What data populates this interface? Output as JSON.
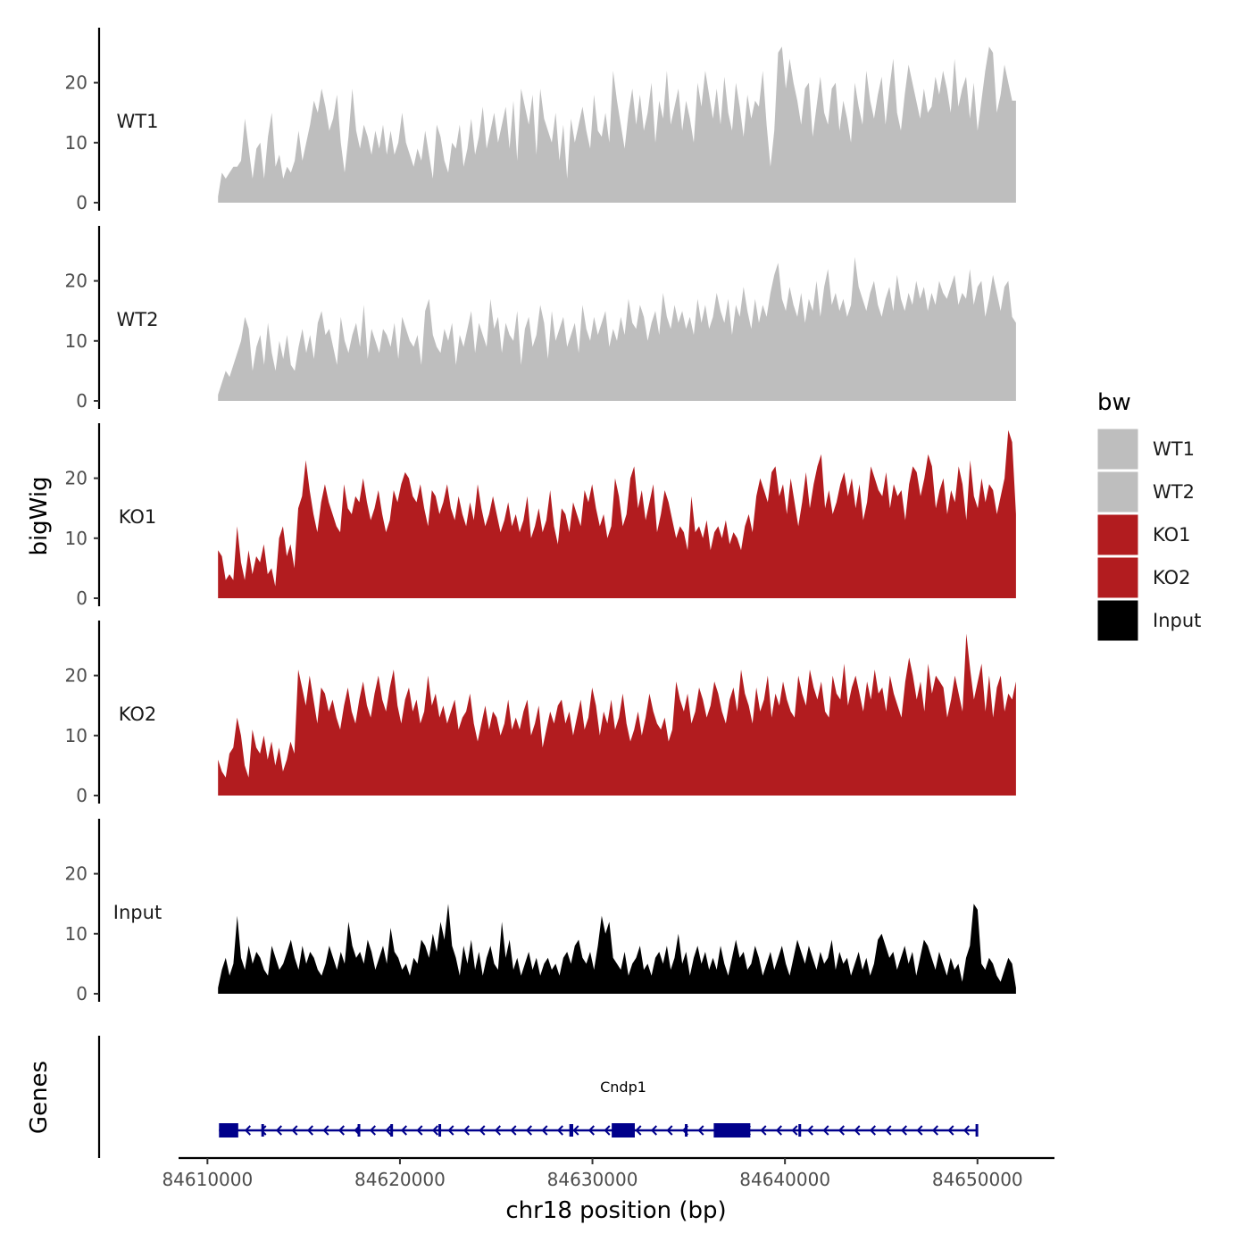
{
  "chart_data": {
    "type": "area",
    "ylabel": "bigWig",
    "xlabel": "chr18 position (bp)",
    "chromosome": "chr18",
    "xlim": [
      84608500,
      84654000
    ],
    "data_x_range": [
      84610550,
      84652000
    ],
    "ylim": [
      0,
      29
    ],
    "yticks": [
      0,
      10,
      20
    ],
    "xticks": [
      84610000,
      84620000,
      84630000,
      84640000,
      84650000
    ],
    "tracks": [
      {
        "name": "WT1",
        "color": "#bebebe",
        "values": [
          1,
          5,
          4,
          5,
          6,
          6,
          7,
          14,
          9,
          4,
          9,
          10,
          4,
          11,
          15,
          6,
          8,
          4,
          6,
          5,
          7,
          12,
          7,
          10,
          13,
          17,
          15,
          19,
          16,
          12,
          14,
          18,
          10,
          5,
          11,
          19,
          12,
          9,
          13,
          11,
          8,
          12,
          9,
          13,
          8,
          12,
          8,
          10,
          15,
          10,
          8,
          6,
          9,
          7,
          12,
          8,
          4,
          13,
          11,
          7,
          5,
          10,
          9,
          13,
          6,
          9,
          14,
          8,
          11,
          16,
          9,
          12,
          15,
          10,
          13,
          16,
          9,
          17,
          7,
          19,
          16,
          13,
          18,
          8,
          19,
          14,
          12,
          10,
          15,
          7,
          13,
          4,
          14,
          10,
          13,
          16,
          12,
          9,
          18,
          12,
          11,
          15,
          10,
          22,
          17,
          13,
          9,
          15,
          19,
          13,
          18,
          12,
          15,
          20,
          10,
          17,
          14,
          22,
          13,
          16,
          19,
          12,
          17,
          14,
          10,
          20,
          16,
          22,
          18,
          14,
          19,
          13,
          21,
          15,
          12,
          20,
          16,
          11,
          18,
          14,
          17,
          16,
          22,
          13,
          6,
          12,
          25,
          26,
          19,
          24,
          20,
          17,
          13,
          19,
          20,
          11,
          16,
          21,
          15,
          13,
          19,
          20,
          12,
          17,
          14,
          10,
          20,
          16,
          13,
          22,
          17,
          14,
          18,
          21,
          13,
          19,
          24,
          15,
          12,
          18,
          23,
          20,
          17,
          14,
          19,
          15,
          16,
          21,
          18,
          22,
          19,
          15,
          24,
          16,
          19,
          21,
          14,
          20,
          12,
          17,
          22,
          26,
          25,
          15,
          18,
          23,
          20,
          17,
          17
        ]
      },
      {
        "name": "WT2",
        "color": "#bebebe",
        "values": [
          1,
          3,
          5,
          4,
          6,
          8,
          10,
          14,
          12,
          5,
          9,
          11,
          6,
          13,
          8,
          5,
          10,
          7,
          11,
          6,
          5,
          9,
          12,
          8,
          11,
          7,
          13,
          15,
          11,
          12,
          9,
          6,
          14,
          10,
          8,
          11,
          13,
          9,
          16,
          7,
          12,
          10,
          8,
          12,
          11,
          9,
          13,
          7,
          14,
          12,
          10,
          9,
          11,
          6,
          15,
          17,
          11,
          9,
          8,
          12,
          10,
          13,
          6,
          11,
          9,
          12,
          15,
          8,
          13,
          11,
          9,
          17,
          12,
          14,
          8,
          13,
          11,
          10,
          15,
          6,
          12,
          14,
          9,
          11,
          16,
          13,
          7,
          15,
          10,
          12,
          14,
          9,
          11,
          13,
          8,
          16,
          12,
          10,
          14,
          11,
          13,
          15,
          9,
          12,
          10,
          14,
          11,
          17,
          13,
          12,
          16,
          14,
          10,
          13,
          15,
          11,
          18,
          14,
          12,
          16,
          13,
          15,
          12,
          14,
          11,
          17,
          13,
          16,
          12,
          14,
          18,
          15,
          13,
          17,
          11,
          16,
          14,
          19,
          15,
          12,
          17,
          13,
          16,
          14,
          18,
          21,
          23,
          17,
          15,
          19,
          16,
          14,
          18,
          13,
          17,
          15,
          20,
          14,
          19,
          22,
          16,
          18,
          15,
          17,
          14,
          16,
          24,
          19,
          17,
          15,
          18,
          20,
          16,
          14,
          17,
          19,
          15,
          21,
          17,
          15,
          18,
          16,
          20,
          17,
          19,
          15,
          18,
          16,
          20,
          18,
          17,
          19,
          21,
          16,
          18,
          17,
          22,
          16,
          19,
          20,
          14,
          17,
          21,
          18,
          15,
          19,
          20,
          14,
          13
        ]
      },
      {
        "name": "KO1",
        "color": "#b21c1f",
        "values": [
          8,
          7,
          3,
          4,
          3,
          12,
          6,
          3,
          8,
          4,
          7,
          6,
          9,
          4,
          5,
          2,
          10,
          12,
          7,
          9,
          5,
          15,
          17,
          23,
          18,
          14,
          11,
          16,
          19,
          16,
          14,
          12,
          11,
          19,
          15,
          14,
          17,
          16,
          20,
          16,
          13,
          15,
          18,
          14,
          11,
          13,
          18,
          16,
          19,
          21,
          20,
          17,
          16,
          19,
          15,
          12,
          18,
          17,
          14,
          16,
          19,
          15,
          13,
          17,
          14,
          12,
          16,
          13,
          19,
          15,
          12,
          14,
          17,
          14,
          11,
          13,
          16,
          12,
          14,
          11,
          13,
          17,
          10,
          12,
          15,
          11,
          13,
          18,
          12,
          9,
          15,
          14,
          11,
          16,
          14,
          12,
          18,
          16,
          19,
          15,
          12,
          14,
          10,
          12,
          20,
          17,
          12,
          14,
          20,
          22,
          15,
          18,
          13,
          16,
          19,
          11,
          14,
          18,
          16,
          13,
          10,
          12,
          11,
          8,
          17,
          11,
          12,
          10,
          13,
          8,
          11,
          12,
          10,
          13,
          9,
          11,
          10,
          8,
          12,
          14,
          11,
          17,
          20,
          18,
          16,
          21,
          22,
          17,
          19,
          14,
          20,
          16,
          12,
          16,
          21,
          15,
          19,
          22,
          24,
          15,
          18,
          14,
          16,
          19,
          21,
          17,
          20,
          15,
          19,
          13,
          16,
          22,
          20,
          18,
          17,
          21,
          15,
          19,
          17,
          18,
          13,
          19,
          22,
          21,
          17,
          20,
          24,
          22,
          15,
          18,
          20,
          14,
          18,
          16,
          22,
          19,
          13,
          23,
          17,
          15,
          20,
          16,
          19,
          18,
          14,
          17,
          20,
          28,
          26,
          14
        ]
      },
      {
        "name": "KO2",
        "color": "#b21c1f",
        "values": [
          6,
          4,
          3,
          7,
          8,
          13,
          10,
          5,
          3,
          11,
          8,
          7,
          10,
          6,
          9,
          5,
          8,
          4,
          6,
          9,
          7,
          21,
          18,
          15,
          20,
          16,
          12,
          18,
          17,
          14,
          16,
          13,
          11,
          15,
          18,
          14,
          12,
          16,
          19,
          15,
          13,
          17,
          20,
          16,
          14,
          18,
          21,
          15,
          12,
          16,
          18,
          14,
          16,
          12,
          14,
          20,
          15,
          17,
          13,
          15,
          12,
          14,
          16,
          11,
          13,
          14,
          17,
          12,
          9,
          12,
          15,
          11,
          14,
          13,
          10,
          12,
          16,
          11,
          13,
          11,
          14,
          16,
          10,
          12,
          15,
          8,
          11,
          14,
          12,
          15,
          16,
          12,
          14,
          10,
          13,
          16,
          11,
          13,
          18,
          15,
          10,
          14,
          12,
          16,
          11,
          13,
          17,
          12,
          9,
          11,
          14,
          10,
          13,
          17,
          14,
          12,
          11,
          13,
          9,
          11,
          19,
          16,
          14,
          17,
          12,
          14,
          18,
          16,
          13,
          15,
          19,
          17,
          14,
          12,
          16,
          18,
          14,
          21,
          17,
          15,
          12,
          18,
          14,
          16,
          20,
          13,
          17,
          15,
          19,
          16,
          14,
          13,
          20,
          17,
          15,
          21,
          18,
          16,
          19,
          14,
          13,
          20,
          17,
          16,
          22,
          15,
          18,
          20,
          17,
          14,
          19,
          16,
          21,
          17,
          18,
          14,
          20,
          17,
          15,
          13,
          19,
          23,
          20,
          16,
          19,
          14,
          22,
          17,
          20,
          19,
          18,
          13,
          16,
          20,
          17,
          14,
          27,
          21,
          16,
          19,
          22,
          14,
          20,
          13,
          18,
          20,
          14,
          17,
          16,
          19
        ]
      },
      {
        "name": "Input",
        "color": "#000000",
        "values": [
          1,
          4,
          6,
          3,
          5,
          13,
          6,
          4,
          8,
          5,
          7,
          6,
          4,
          3,
          8,
          6,
          4,
          5,
          7,
          9,
          6,
          4,
          8,
          5,
          7,
          6,
          4,
          3,
          5,
          8,
          6,
          4,
          7,
          5,
          12,
          8,
          6,
          7,
          5,
          9,
          7,
          4,
          6,
          8,
          5,
          11,
          7,
          6,
          4,
          5,
          3,
          6,
          5,
          9,
          8,
          6,
          10,
          7,
          12,
          9,
          15,
          8,
          6,
          3,
          8,
          5,
          9,
          4,
          7,
          3,
          6,
          8,
          5,
          4,
          12,
          6,
          9,
          4,
          6,
          3,
          5,
          7,
          4,
          6,
          3,
          5,
          6,
          4,
          5,
          3,
          6,
          7,
          5,
          8,
          9,
          6,
          5,
          7,
          4,
          8,
          13,
          10,
          12,
          6,
          5,
          4,
          7,
          3,
          5,
          6,
          8,
          4,
          5,
          3,
          6,
          7,
          5,
          8,
          4,
          6,
          10,
          5,
          7,
          3,
          6,
          8,
          5,
          7,
          4,
          6,
          4,
          8,
          5,
          3,
          6,
          9,
          6,
          7,
          4,
          5,
          8,
          6,
          3,
          5,
          7,
          4,
          6,
          8,
          5,
          3,
          6,
          9,
          7,
          5,
          8,
          6,
          4,
          7,
          5,
          6,
          9,
          4,
          7,
          5,
          6,
          3,
          5,
          7,
          4,
          6,
          3,
          5,
          9,
          10,
          8,
          6,
          7,
          4,
          6,
          8,
          5,
          7,
          3,
          6,
          9,
          8,
          6,
          4,
          7,
          5,
          3,
          6,
          4,
          5,
          2,
          6,
          8,
          15,
          14,
          5,
          4,
          6,
          5,
          3,
          2,
          4,
          6,
          5,
          1
        ]
      }
    ],
    "gene_track": {
      "label": "Genes",
      "gene_name": "Cndp1",
      "strand": "-",
      "color": "#00008b",
      "start": 84610600,
      "end": 84650000,
      "exons": [
        [
          84610600,
          84611600
        ],
        [
          84612800,
          84612900
        ],
        [
          84617800,
          84617900
        ],
        [
          84619500,
          84619600
        ],
        [
          84622000,
          84622100
        ],
        [
          84628800,
          84629000
        ],
        [
          84631000,
          84632200
        ],
        [
          84634800,
          84634900
        ],
        [
          84636300,
          84638200
        ],
        [
          84640700,
          84640800
        ],
        [
          84649900,
          84650000
        ]
      ]
    },
    "legend": {
      "title": "bw",
      "items": [
        {
          "label": "WT1",
          "color": "#bebebe"
        },
        {
          "label": "WT2",
          "color": "#bebebe"
        },
        {
          "label": "KO1",
          "color": "#b21c1f"
        },
        {
          "label": "KO2",
          "color": "#b21c1f"
        },
        {
          "label": "Input",
          "color": "#000000"
        }
      ]
    }
  }
}
